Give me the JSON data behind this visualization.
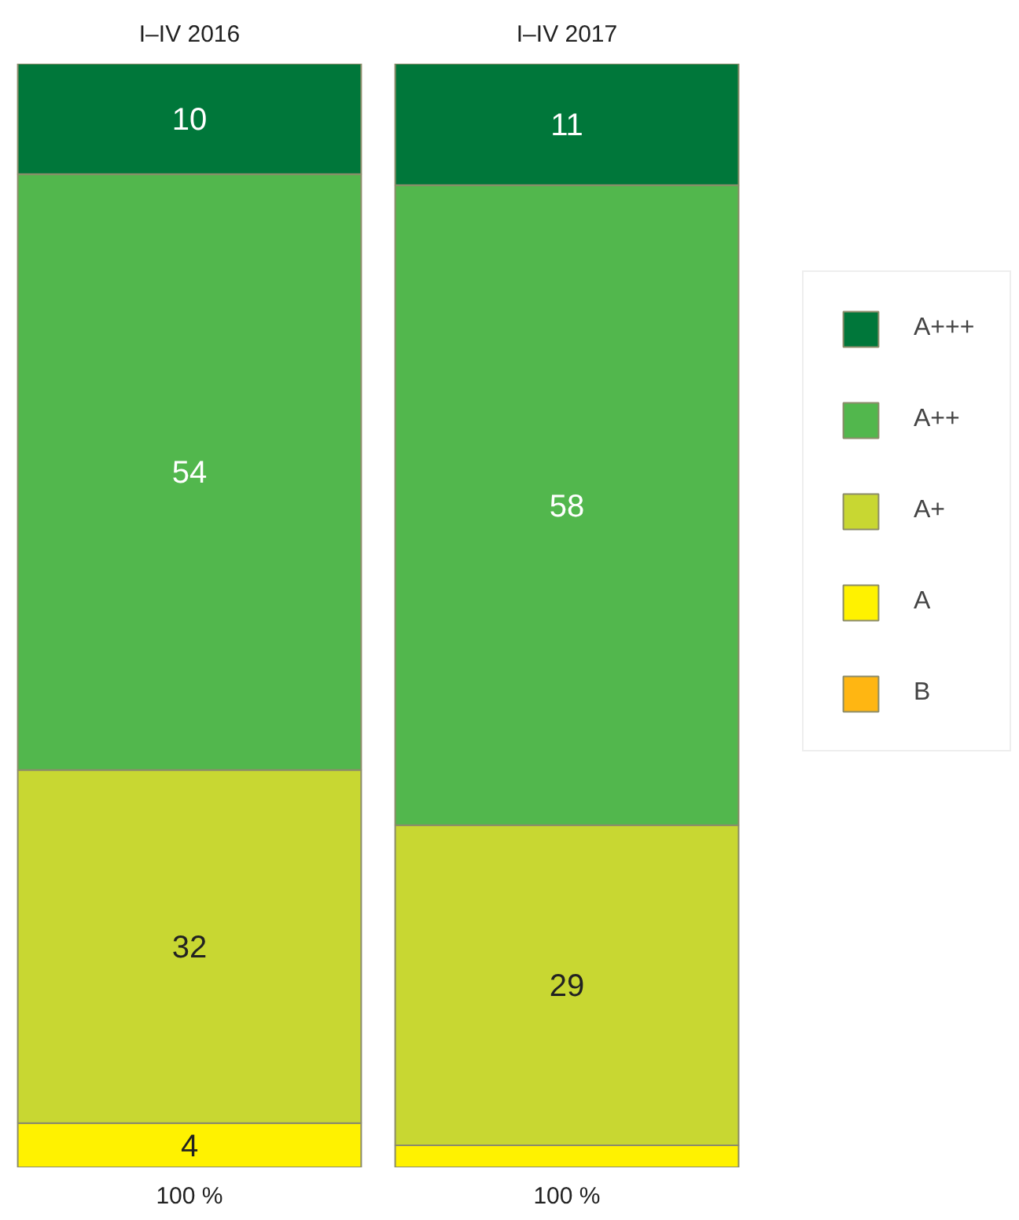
{
  "chart_data": {
    "type": "bar",
    "stacked": true,
    "categories": [
      "I–IV 2016",
      "I–IV 2017"
    ],
    "ylim": [
      0,
      100
    ],
    "tick_labels": "x",
    "grid": false,
    "legend": "right",
    "series": [
      {
        "name": "B",
        "color": "#ffb612",
        "values": [
          0,
          0
        ],
        "value_labels": [
          null,
          null
        ]
      },
      {
        "name": "A",
        "color": "#fff200",
        "values": [
          4,
          2
        ],
        "value_labels": [
          "4",
          null
        ]
      },
      {
        "name": "A+",
        "color": "#c8d732",
        "values": [
          32,
          29
        ],
        "value_labels": [
          "32",
          "29"
        ]
      },
      {
        "name": "A++",
        "color": "#52b74d",
        "values": [
          54,
          58
        ],
        "value_labels": [
          "54",
          "58"
        ]
      },
      {
        "name": "A+++",
        "color": "#00773a",
        "values": [
          10,
          11
        ],
        "value_labels": [
          "10",
          "11"
        ]
      }
    ],
    "totals": [
      "100 %",
      "100 %"
    ]
  }
}
